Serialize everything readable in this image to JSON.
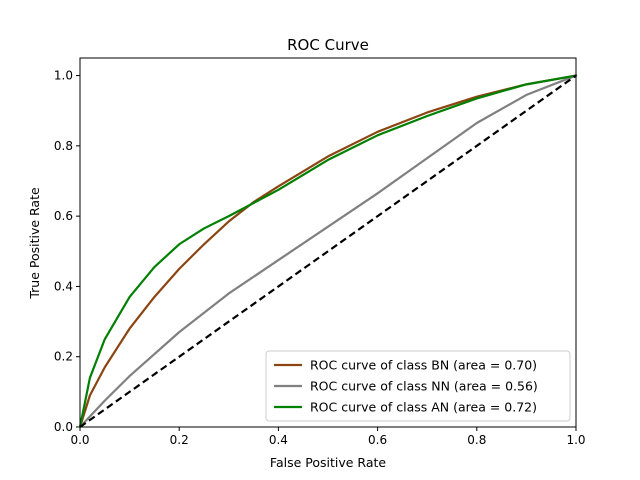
{
  "chart_data": {
    "type": "line",
    "title": "ROC Curve",
    "xlabel": "False Positive Rate",
    "ylabel": "True Positive Rate",
    "xlim": [
      0,
      1
    ],
    "ylim": [
      0,
      1.05
    ],
    "grid": false,
    "legend_position": "lower-right",
    "x_ticks": [
      "0.0",
      "0.2",
      "0.4",
      "0.6",
      "0.8",
      "1.0"
    ],
    "y_ticks": [
      "0.0",
      "0.2",
      "0.4",
      "0.6",
      "0.8",
      "1.0"
    ],
    "series": [
      {
        "name": "ROC curve of class BN (area = 0.70)",
        "color": "#8b4513",
        "x": [
          0,
          0.02,
          0.05,
          0.1,
          0.15,
          0.2,
          0.25,
          0.3,
          0.35,
          0.4,
          0.5,
          0.6,
          0.7,
          0.8,
          0.9,
          1.0
        ],
        "y": [
          0,
          0.09,
          0.17,
          0.28,
          0.37,
          0.45,
          0.52,
          0.585,
          0.64,
          0.685,
          0.77,
          0.84,
          0.895,
          0.94,
          0.975,
          1.0
        ]
      },
      {
        "name": "ROC curve of class NN (area = 0.56)",
        "color": "#808080",
        "x": [
          0,
          0.05,
          0.1,
          0.2,
          0.3,
          0.4,
          0.5,
          0.6,
          0.7,
          0.8,
          0.9,
          1.0
        ],
        "y": [
          0,
          0.075,
          0.145,
          0.27,
          0.38,
          0.475,
          0.57,
          0.665,
          0.765,
          0.865,
          0.945,
          1.0
        ]
      },
      {
        "name": "ROC curve of class AN (area = 0.72)",
        "color": "#008000",
        "x": [
          0,
          0.02,
          0.05,
          0.1,
          0.15,
          0.2,
          0.25,
          0.3,
          0.4,
          0.5,
          0.6,
          0.7,
          0.8,
          0.9,
          1.0
        ],
        "y": [
          0,
          0.14,
          0.25,
          0.37,
          0.455,
          0.52,
          0.565,
          0.6,
          0.675,
          0.76,
          0.83,
          0.885,
          0.935,
          0.975,
          1.0
        ]
      }
    ],
    "reference_line": {
      "x": [
        0,
        1
      ],
      "y": [
        0,
        1
      ],
      "color": "#000000",
      "style": "dashed"
    }
  }
}
